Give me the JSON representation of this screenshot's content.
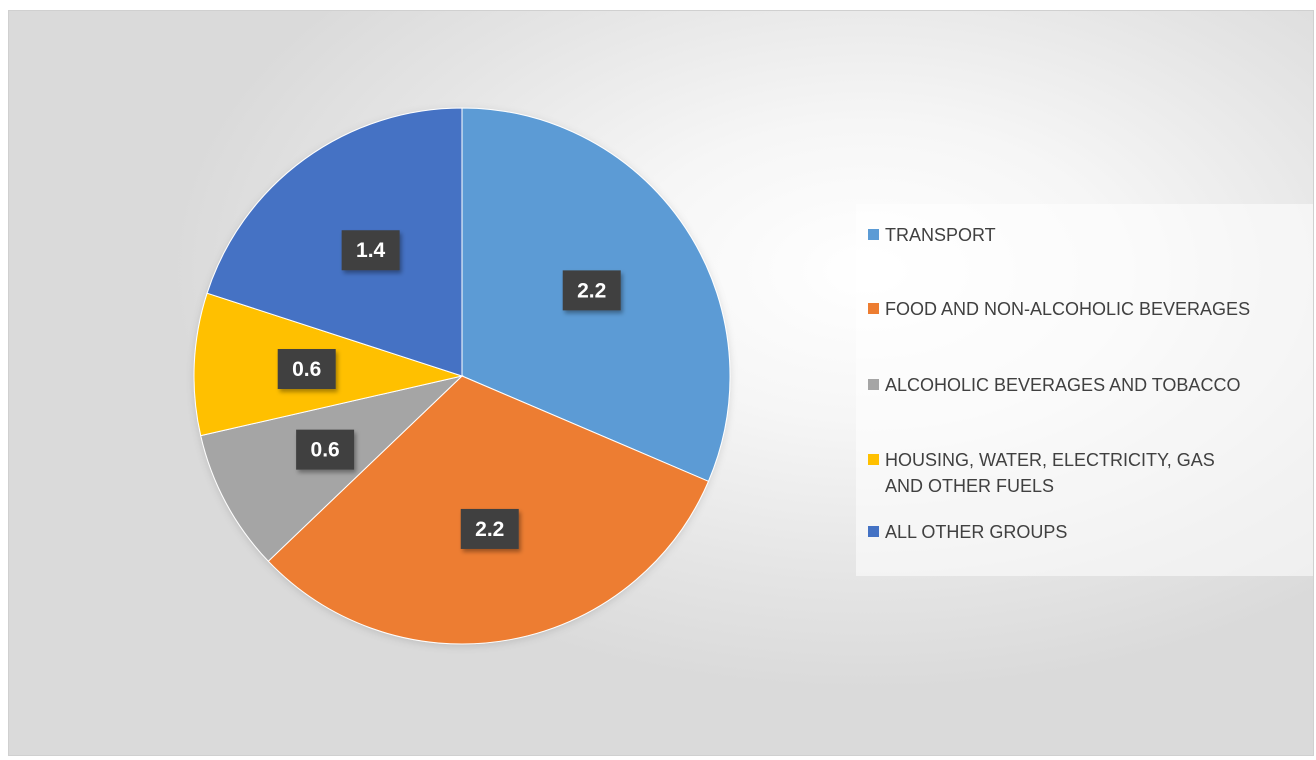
{
  "chart_data": {
    "type": "pie",
    "categories": [
      "TRANSPORT",
      "FOOD AND NON-ALCOHOLIC BEVERAGES",
      "ALCOHOLIC BEVERAGES AND TOBACCO",
      "HOUSING, WATER, ELECTRICITY, GAS AND OTHER FUELS",
      "ALL OTHER GROUPS"
    ],
    "values": [
      2.2,
      2.2,
      0.6,
      0.6,
      1.4
    ],
    "data_labels": [
      "2.2",
      "2.2",
      "0.6",
      "0.6",
      "1.4"
    ],
    "colors": [
      "#5b9bd5",
      "#ed7d31",
      "#a5a5a5",
      "#ffc000",
      "#4472c4"
    ],
    "start_angle_deg": 0,
    "direction": "clockwise",
    "legend": {
      "position": "right",
      "items": [
        {
          "label": "TRANSPORT",
          "color": "#5b9bd5"
        },
        {
          "label": "FOOD AND NON-ALCOHOLIC BEVERAGES",
          "color": "#ed7d31"
        },
        {
          "label": "ALCOHOLIC BEVERAGES AND TOBACCO",
          "color": "#a5a5a5"
        },
        {
          "label": "HOUSING, WATER, ELECTRICITY, GAS\nAND OTHER FUELS",
          "color": "#ffc000"
        },
        {
          "label": "ALL OTHER GROUPS",
          "color": "#4472c4"
        }
      ]
    }
  }
}
